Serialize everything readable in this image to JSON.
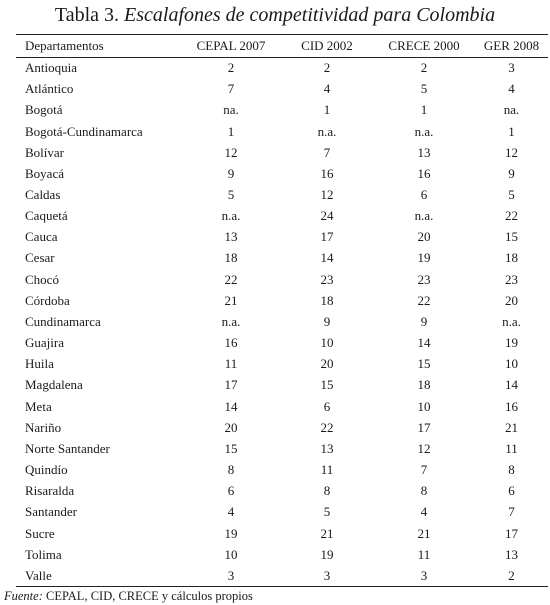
{
  "caption": {
    "prefix": "Tabla 3.",
    "title": "Escalafones de competitividad para Colombia"
  },
  "columns": [
    "Departamentos",
    "CEPAL 2007",
    "CID 2002",
    "CRECE 2000",
    "GER 2008"
  ],
  "rows": [
    [
      "Antioquia",
      "2",
      "2",
      "2",
      "3"
    ],
    [
      "Atlántico",
      "7",
      "4",
      "5",
      "4"
    ],
    [
      "Bogotá",
      "na.",
      "1",
      "1",
      "na."
    ],
    [
      "Bogotá-Cundinamarca",
      "1",
      "n.a.",
      "n.a.",
      "1"
    ],
    [
      "Bolívar",
      "12",
      "7",
      "13",
      "12"
    ],
    [
      "Boyacá",
      "9",
      "16",
      "16",
      "9"
    ],
    [
      "Caldas",
      "5",
      "12",
      "6",
      "5"
    ],
    [
      "Caquetá",
      "n.a.",
      "24",
      "n.a.",
      "22"
    ],
    [
      "Cauca",
      "13",
      "17",
      "20",
      "15"
    ],
    [
      "Cesar",
      "18",
      "14",
      "19",
      "18"
    ],
    [
      "Chocó",
      "22",
      "23",
      "23",
      "23"
    ],
    [
      "Córdoba",
      "21",
      "18",
      "22",
      "20"
    ],
    [
      "Cundinamarca",
      "n.a.",
      "9",
      "9",
      "n.a."
    ],
    [
      "Guajira",
      "16",
      "10",
      "14",
      "19"
    ],
    [
      "Huila",
      "11",
      "20",
      "15",
      "10"
    ],
    [
      "Magdalena",
      "17",
      "15",
      "18",
      "14"
    ],
    [
      "Meta",
      "14",
      "6",
      "10",
      "16"
    ],
    [
      "Nariño",
      "20",
      "22",
      "17",
      "21"
    ],
    [
      "Norte Santander",
      "15",
      "13",
      "12",
      "11"
    ],
    [
      "Quindío",
      "8",
      "11",
      "7",
      "8"
    ],
    [
      "Risaralda",
      "6",
      "8",
      "8",
      "6"
    ],
    [
      "Santander",
      "4",
      "5",
      "4",
      "7"
    ],
    [
      "Sucre",
      "19",
      "21",
      "21",
      "17"
    ],
    [
      "Tolima",
      "10",
      "19",
      "11",
      "13"
    ],
    [
      "Valle",
      "3",
      "3",
      "3",
      "2"
    ]
  ],
  "source": {
    "label": "Fuente:",
    "text": "CEPAL, CID, CRECE y cálculos propios"
  }
}
